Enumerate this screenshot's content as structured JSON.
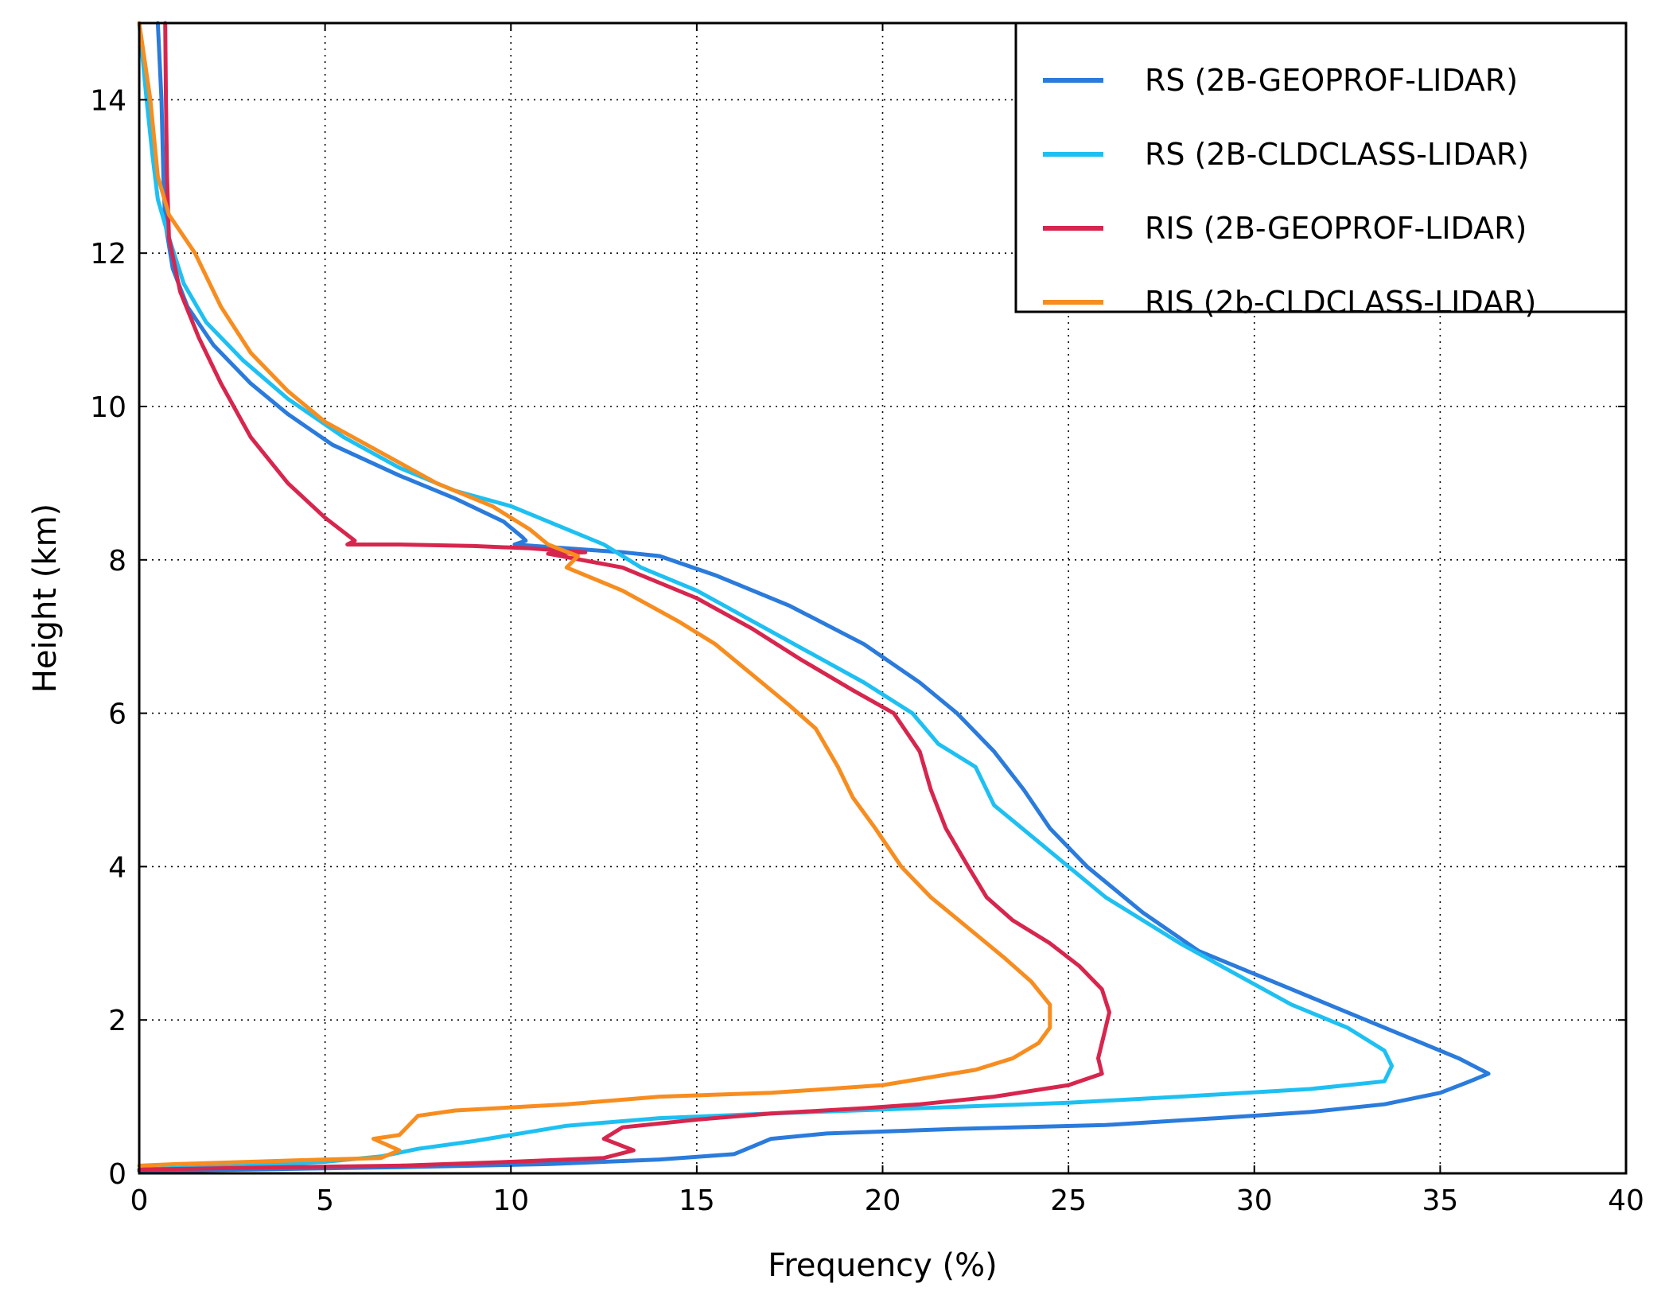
{
  "chart_data": {
    "type": "line",
    "title": "",
    "xlabel": "Frequency (%)",
    "ylabel": "Height (km)",
    "xlim": [
      0,
      40
    ],
    "ylim": [
      0,
      15
    ],
    "xticks": [
      0,
      5,
      10,
      15,
      20,
      25,
      30,
      35,
      40
    ],
    "yticks": [
      0,
      2,
      4,
      6,
      8,
      10,
      12,
      14
    ],
    "grid": true,
    "legend_position": "top-right",
    "series": [
      {
        "name": "RS (2B-GEOPROF-LIDAR)",
        "color": "#2a7bdc",
        "points": [
          [
            0.5,
            15
          ],
          [
            0.6,
            14
          ],
          [
            0.65,
            13
          ],
          [
            0.7,
            12.4
          ],
          [
            0.9,
            11.8
          ],
          [
            1.3,
            11.3
          ],
          [
            2.0,
            10.8
          ],
          [
            3.0,
            10.3
          ],
          [
            4.0,
            9.9
          ],
          [
            5.2,
            9.5
          ],
          [
            7.0,
            9.1
          ],
          [
            8.5,
            8.8
          ],
          [
            9.8,
            8.5
          ],
          [
            10.3,
            8.3
          ],
          [
            10.4,
            8.25
          ],
          [
            10.1,
            8.2
          ],
          [
            11.5,
            8.15
          ],
          [
            13.0,
            8.1
          ],
          [
            14.0,
            8.05
          ],
          [
            15.5,
            7.8
          ],
          [
            17.5,
            7.4
          ],
          [
            19.5,
            6.9
          ],
          [
            21.0,
            6.4
          ],
          [
            22.0,
            6.0
          ],
          [
            23.0,
            5.5
          ],
          [
            23.8,
            5.0
          ],
          [
            24.5,
            4.5
          ],
          [
            25.5,
            4.0
          ],
          [
            27.0,
            3.4
          ],
          [
            28.5,
            2.9
          ],
          [
            31.0,
            2.4
          ],
          [
            33.0,
            2.0
          ],
          [
            34.5,
            1.7
          ],
          [
            35.5,
            1.5
          ],
          [
            36.3,
            1.3
          ],
          [
            35.8,
            1.2
          ],
          [
            35.0,
            1.05
          ],
          [
            33.5,
            0.9
          ],
          [
            31.5,
            0.8
          ],
          [
            29.0,
            0.72
          ],
          [
            26.0,
            0.63
          ],
          [
            22.0,
            0.58
          ],
          [
            18.5,
            0.52
          ],
          [
            17.0,
            0.45
          ],
          [
            16.5,
            0.35
          ],
          [
            16.0,
            0.25
          ],
          [
            14.0,
            0.18
          ],
          [
            11.0,
            0.12
          ],
          [
            7.0,
            0.08
          ],
          [
            3.0,
            0.05
          ],
          [
            0,
            0.03
          ]
        ]
      },
      {
        "name": "RS (2B-CLDCLASS-LIDAR)",
        "color": "#1ec0f2",
        "points": [
          [
            0,
            15
          ],
          [
            0.2,
            14
          ],
          [
            0.35,
            13.3
          ],
          [
            0.5,
            12.7
          ],
          [
            0.8,
            12.2
          ],
          [
            1.2,
            11.6
          ],
          [
            1.8,
            11.1
          ],
          [
            2.8,
            10.6
          ],
          [
            4.0,
            10.1
          ],
          [
            5.5,
            9.6
          ],
          [
            7.0,
            9.2
          ],
          [
            8.5,
            8.9
          ],
          [
            10.0,
            8.7
          ],
          [
            11.5,
            8.4
          ],
          [
            12.5,
            8.2
          ],
          [
            13.5,
            7.9
          ],
          [
            15.0,
            7.6
          ],
          [
            16.5,
            7.2
          ],
          [
            18.0,
            6.8
          ],
          [
            19.5,
            6.4
          ],
          [
            20.8,
            6.0
          ],
          [
            21.5,
            5.6
          ],
          [
            22.5,
            5.3
          ],
          [
            23.0,
            4.8
          ],
          [
            24.0,
            4.4
          ],
          [
            25.0,
            4.0
          ],
          [
            26.0,
            3.6
          ],
          [
            27.0,
            3.3
          ],
          [
            28.0,
            3.0
          ],
          [
            29.5,
            2.6
          ],
          [
            31.0,
            2.2
          ],
          [
            32.5,
            1.9
          ],
          [
            33.5,
            1.6
          ],
          [
            33.7,
            1.4
          ],
          [
            33.5,
            1.2
          ],
          [
            31.5,
            1.1
          ],
          [
            28.0,
            1.0
          ],
          [
            25.0,
            0.92
          ],
          [
            21.0,
            0.85
          ],
          [
            17.0,
            0.78
          ],
          [
            14.0,
            0.72
          ],
          [
            11.5,
            0.62
          ],
          [
            10.0,
            0.5
          ],
          [
            9.0,
            0.42
          ],
          [
            7.5,
            0.32
          ],
          [
            6.5,
            0.22
          ],
          [
            5.0,
            0.15
          ],
          [
            3.0,
            0.1
          ],
          [
            1.0,
            0.07
          ],
          [
            0,
            0.05
          ]
        ]
      },
      {
        "name": "RIS (2B-GEOPROF-LIDAR)",
        "color": "#d7264e",
        "points": [
          [
            0.7,
            15
          ],
          [
            0.72,
            14
          ],
          [
            0.75,
            13
          ],
          [
            0.8,
            12.2
          ],
          [
            1.1,
            11.5
          ],
          [
            1.6,
            10.9
          ],
          [
            2.2,
            10.3
          ],
          [
            3.0,
            9.6
          ],
          [
            4.0,
            9.0
          ],
          [
            5.0,
            8.55
          ],
          [
            5.8,
            8.25
          ],
          [
            5.6,
            8.2
          ],
          [
            7.0,
            8.2
          ],
          [
            9.0,
            8.18
          ],
          [
            10.5,
            8.15
          ],
          [
            12.0,
            8.1
          ],
          [
            11.0,
            8.08
          ],
          [
            13.0,
            7.9
          ],
          [
            15.0,
            7.5
          ],
          [
            16.5,
            7.1
          ],
          [
            17.8,
            6.7
          ],
          [
            19.2,
            6.3
          ],
          [
            20.3,
            6.0
          ],
          [
            21.0,
            5.5
          ],
          [
            21.3,
            5.0
          ],
          [
            21.7,
            4.5
          ],
          [
            22.3,
            4.0
          ],
          [
            22.8,
            3.6
          ],
          [
            23.5,
            3.3
          ],
          [
            24.5,
            3.0
          ],
          [
            25.3,
            2.7
          ],
          [
            25.9,
            2.4
          ],
          [
            26.1,
            2.1
          ],
          [
            26.0,
            1.9
          ],
          [
            25.9,
            1.7
          ],
          [
            25.8,
            1.5
          ],
          [
            25.9,
            1.3
          ],
          [
            25.0,
            1.15
          ],
          [
            23.0,
            1.0
          ],
          [
            21.0,
            0.9
          ],
          [
            19.5,
            0.85
          ],
          [
            17.0,
            0.78
          ],
          [
            15.0,
            0.7
          ],
          [
            13.0,
            0.6
          ],
          [
            12.5,
            0.45
          ],
          [
            13.3,
            0.3
          ],
          [
            12.5,
            0.2
          ],
          [
            10.0,
            0.15
          ],
          [
            7.0,
            0.1
          ],
          [
            4.0,
            0.08
          ],
          [
            0,
            0.05
          ]
        ]
      },
      {
        "name": "RIS (2b-CLDCLASS-LIDAR)",
        "color": "#f78d1f",
        "points": [
          [
            0,
            15
          ],
          [
            0.3,
            14
          ],
          [
            0.5,
            13
          ],
          [
            0.8,
            12.5
          ],
          [
            1.5,
            12.0
          ],
          [
            2.2,
            11.3
          ],
          [
            3.0,
            10.7
          ],
          [
            4.0,
            10.2
          ],
          [
            5.0,
            9.8
          ],
          [
            6.5,
            9.4
          ],
          [
            8.0,
            9.0
          ],
          [
            9.5,
            8.7
          ],
          [
            10.5,
            8.4
          ],
          [
            11.0,
            8.2
          ],
          [
            11.8,
            8.05
          ],
          [
            11.5,
            7.9
          ],
          [
            13.0,
            7.6
          ],
          [
            14.5,
            7.2
          ],
          [
            15.5,
            6.9
          ],
          [
            16.5,
            6.5
          ],
          [
            17.5,
            6.1
          ],
          [
            18.2,
            5.8
          ],
          [
            18.8,
            5.3
          ],
          [
            19.2,
            4.9
          ],
          [
            19.8,
            4.5
          ],
          [
            20.5,
            4.0
          ],
          [
            21.3,
            3.6
          ],
          [
            22.3,
            3.2
          ],
          [
            23.3,
            2.8
          ],
          [
            24.0,
            2.5
          ],
          [
            24.5,
            2.2
          ],
          [
            24.5,
            1.9
          ],
          [
            24.2,
            1.7
          ],
          [
            23.5,
            1.5
          ],
          [
            22.5,
            1.35
          ],
          [
            20.0,
            1.15
          ],
          [
            17.0,
            1.05
          ],
          [
            14.0,
            1.0
          ],
          [
            11.5,
            0.9
          ],
          [
            8.5,
            0.82
          ],
          [
            7.5,
            0.75
          ],
          [
            7.2,
            0.6
          ],
          [
            7.0,
            0.5
          ],
          [
            6.3,
            0.45
          ],
          [
            7.0,
            0.3
          ],
          [
            6.5,
            0.2
          ],
          [
            5.0,
            0.18
          ],
          [
            3.0,
            0.15
          ],
          [
            1.0,
            0.12
          ],
          [
            0,
            0.1
          ]
        ]
      }
    ]
  }
}
